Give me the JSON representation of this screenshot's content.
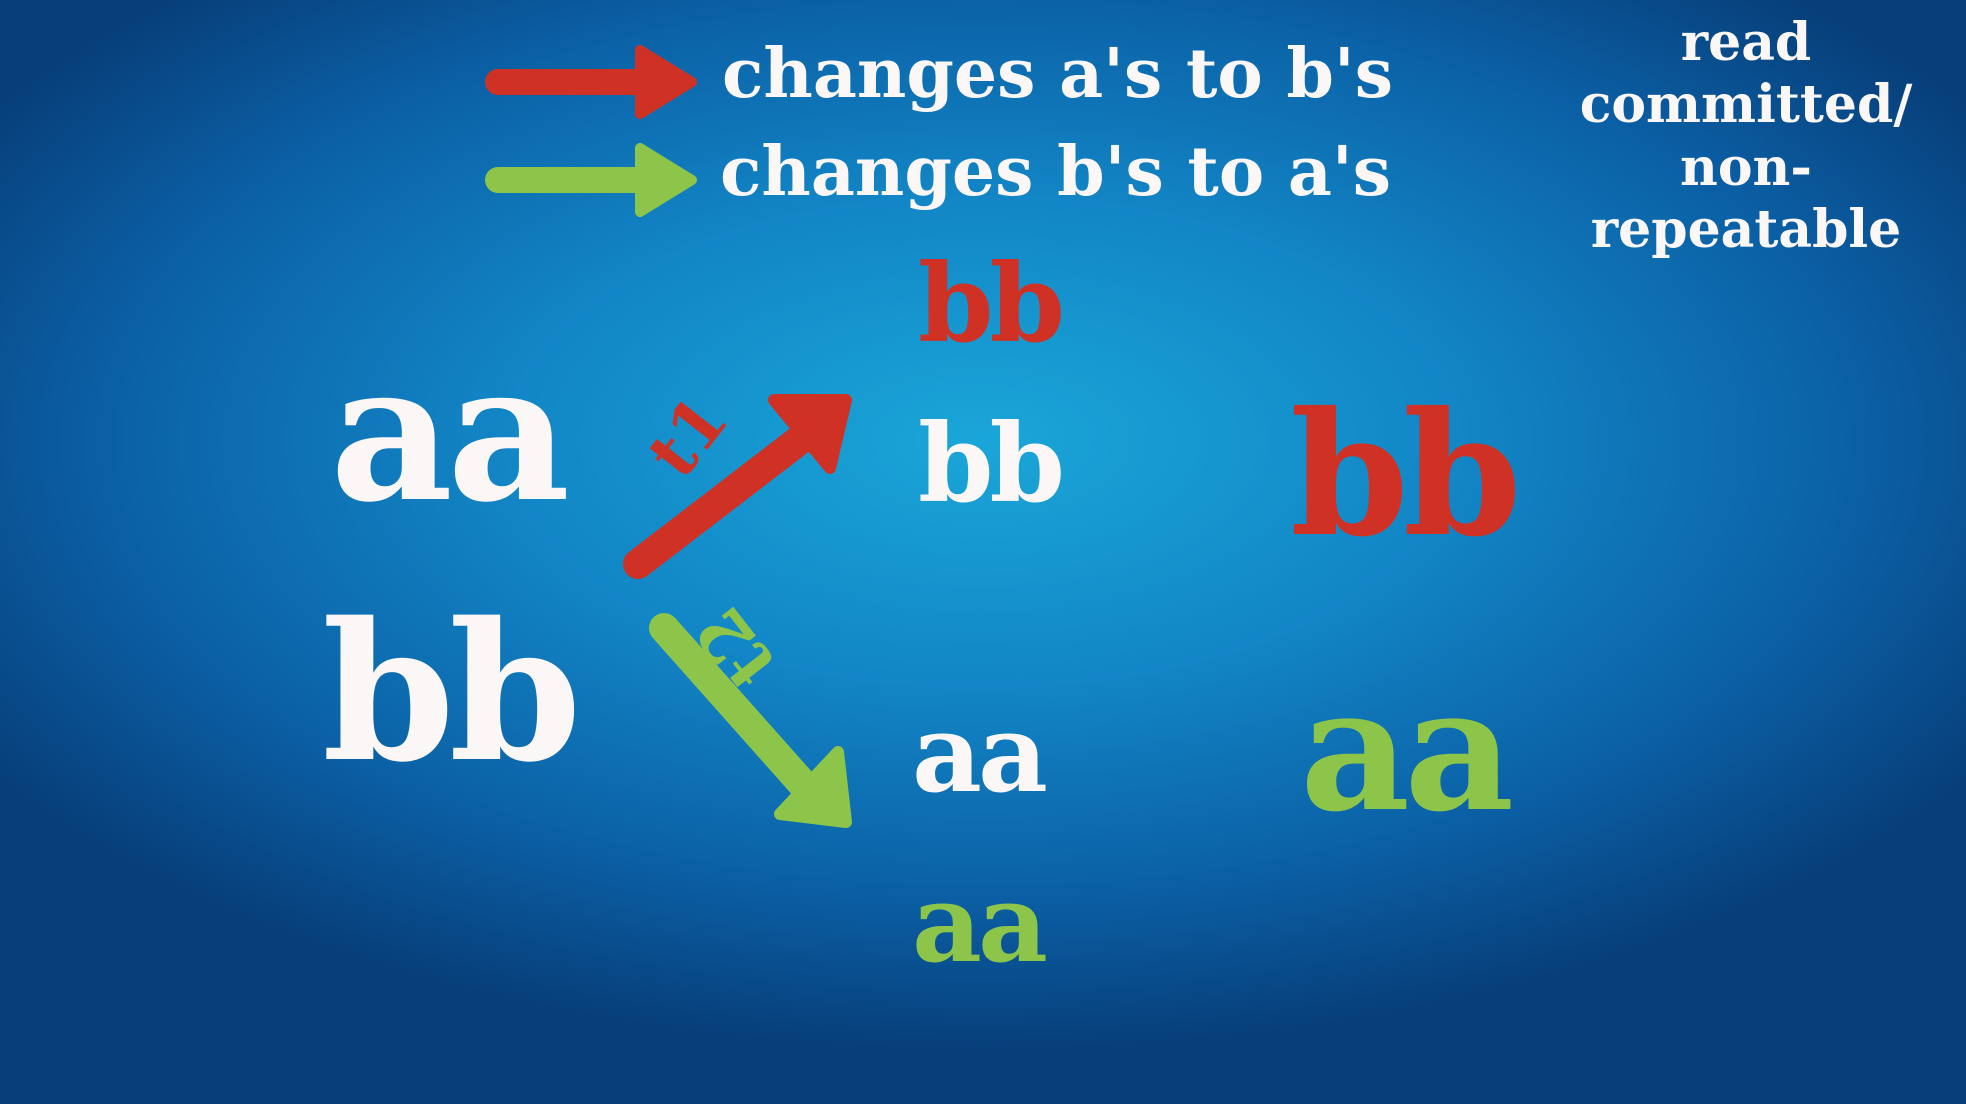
{
  "legend": {
    "red_text": "changes a's to b's",
    "green_text": "changes b's to a's"
  },
  "corner_note": {
    "line1": "read",
    "line2": "committed/",
    "line3": "non-repeatable"
  },
  "initial": {
    "top": "aa",
    "bottom": "bb"
  },
  "transactions": {
    "t1": "t1",
    "t2": "t2"
  },
  "t1_result": {
    "changed": "bb",
    "original": "bb"
  },
  "t2_result": {
    "original": "aa",
    "changed": "aa"
  },
  "final": {
    "top": "bb",
    "bottom": "aa"
  },
  "colors": {
    "red": "#cf3225",
    "green": "#8dc44a",
    "white": "#fbf7f7"
  }
}
